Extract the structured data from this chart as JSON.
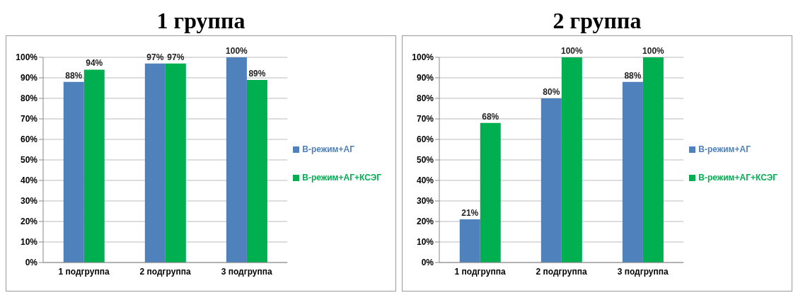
{
  "chart_data": [
    {
      "type": "bar",
      "title": "1 группа",
      "categories": [
        "1 подгруппа",
        "2 подгруппа",
        "3 подгруппа"
      ],
      "series": [
        {
          "name": "B-режим+АГ",
          "color": "#4f81bd",
          "values": [
            88,
            97,
            100
          ],
          "value_labels": [
            "88%",
            "97%",
            "100%"
          ]
        },
        {
          "name": "B-режим+АГ+КСЭГ",
          "color": "#00b050",
          "values": [
            94,
            97,
            89
          ],
          "value_labels": [
            "94%",
            "97%",
            "89%"
          ]
        }
      ],
      "ylim": [
        0,
        100
      ],
      "yticks": [
        {
          "value": 0,
          "label": "0%"
        },
        {
          "value": 10,
          "label": "10%"
        },
        {
          "value": 20,
          "label": "20%"
        },
        {
          "value": 30,
          "label": "30%"
        },
        {
          "value": 40,
          "label": "40%"
        },
        {
          "value": 50,
          "label": "50%"
        },
        {
          "value": 60,
          "label": "60%"
        },
        {
          "value": 70,
          "label": "70%"
        },
        {
          "value": 80,
          "label": "80%"
        },
        {
          "value": 90,
          "label": "90%"
        },
        {
          "value": 100,
          "label": "100%"
        }
      ],
      "grid": "y",
      "legend": "right"
    },
    {
      "type": "bar",
      "title": "2 группа",
      "categories": [
        "1 подгруппа",
        "2 подгруппа",
        "3 подгруппа"
      ],
      "series": [
        {
          "name": "B-режим+АГ",
          "color": "#4f81bd",
          "values": [
            21,
            80,
            88
          ],
          "value_labels": [
            "21%",
            "80%",
            "88%"
          ]
        },
        {
          "name": "B-режим+АГ+КСЭГ",
          "color": "#00b050",
          "values": [
            68,
            100,
            100
          ],
          "value_labels": [
            "68%",
            "100%",
            "100%"
          ]
        }
      ],
      "ylim": [
        0,
        100
      ],
      "yticks": [
        {
          "value": 0,
          "label": "0%"
        },
        {
          "value": 10,
          "label": "10%"
        },
        {
          "value": 20,
          "label": "20%"
        },
        {
          "value": 30,
          "label": "30%"
        },
        {
          "value": 40,
          "label": "40%"
        },
        {
          "value": 50,
          "label": "50%"
        },
        {
          "value": 60,
          "label": "60%"
        },
        {
          "value": 70,
          "label": "70%"
        },
        {
          "value": 80,
          "label": "80%"
        },
        {
          "value": 90,
          "label": "90%"
        },
        {
          "value": 100,
          "label": "100%"
        }
      ],
      "grid": "y",
      "legend": "right"
    }
  ]
}
